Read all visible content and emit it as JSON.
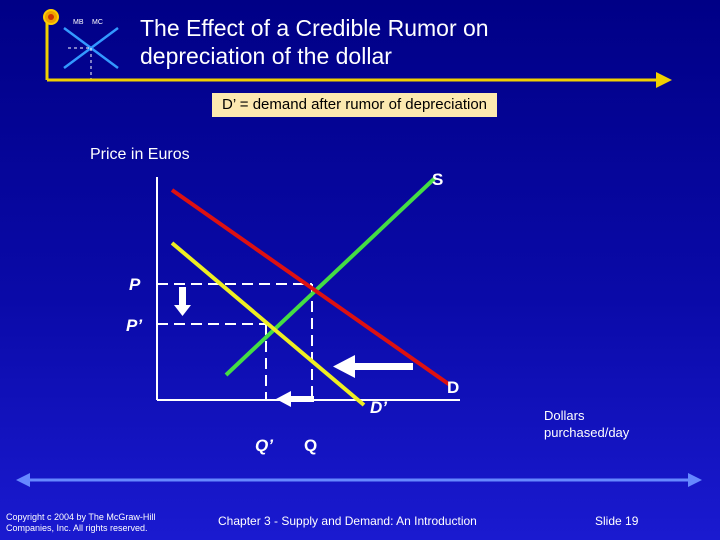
{
  "slide": {
    "logo": {
      "mb_label": "MB",
      "mc_label": "MC"
    },
    "title_line1": "The Effect of a Credible Rumor on",
    "title_line2": "depreciation of the dollar",
    "legend_note": "D’ = demand after rumor of depreciation",
    "colors": {
      "background": "#0a0aa8",
      "supply": "#44dd44",
      "demand": "#dd1111",
      "demand_new": "#eeee22",
      "arrow": "#ffffff",
      "note_box": "#fce9b0"
    }
  },
  "diagram": {
    "y_axis_label": "Price in Euros",
    "x_axis_label_line1": "Dollars",
    "x_axis_label_line2": "purchased/day",
    "supply_label": "S",
    "demand_label": "D",
    "demand_new_label": "D’",
    "price_label": "P",
    "price_new_label": "P’",
    "quantity_label": "Q",
    "quantity_new_label": "Q’"
  },
  "footer": {
    "copyright_line1": "Copyright c 2004 by The McGraw-Hill",
    "copyright_line2": "Companies, Inc.  All rights reserved.",
    "chapter": "Chapter 3 - Supply and Demand: An Introduction",
    "slide_number": "Slide 19"
  }
}
